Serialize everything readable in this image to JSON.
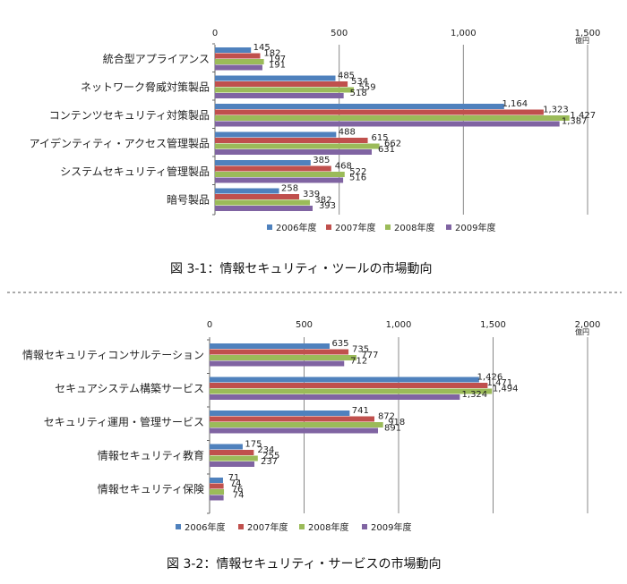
{
  "colors": {
    "s2006": "#4f81bd",
    "s2007": "#c0504d",
    "s2008": "#9bbb59",
    "s2009": "#8064a2",
    "grid": "#888888"
  },
  "chart_data": [
    {
      "type": "bar",
      "orientation": "horizontal",
      "title": "図 3-1：情報セキュリティ・ツールの市場動向",
      "unit": "億円",
      "xlim": [
        0,
        1500
      ],
      "ticks": [
        "0",
        "500",
        "1,000",
        "1,500"
      ],
      "tick_values": [
        0,
        500,
        1000,
        1500
      ],
      "grid": true,
      "legend_position": "bottom",
      "categories": [
        "統合型アプライアンス",
        "ネットワーク脅威対策製品",
        "コンテンツセキュリティ対策製品",
        "アイデンティティ・アクセス管理製品",
        "システムセキュリティ管理製品",
        "暗号製品"
      ],
      "series": [
        {
          "name": "2006年度",
          "values": [
            145,
            485,
            1164,
            488,
            385,
            258
          ],
          "labels": [
            "145",
            "485",
            "1,164",
            "488",
            "385",
            "258"
          ]
        },
        {
          "name": "2007年度",
          "values": [
            182,
            534,
            1323,
            615,
            468,
            339
          ],
          "labels": [
            "182",
            "534",
            "1,323",
            "615",
            "468",
            "339"
          ]
        },
        {
          "name": "2008年度",
          "values": [
            197,
            559,
            1427,
            662,
            522,
            382
          ],
          "labels": [
            "197",
            "559",
            "1,427",
            "662",
            "522",
            "382"
          ]
        },
        {
          "name": "2009年度",
          "values": [
            191,
            518,
            1387,
            631,
            516,
            393
          ],
          "labels": [
            "191",
            "518",
            "1,387",
            "631",
            "516",
            "393"
          ]
        }
      ]
    },
    {
      "type": "bar",
      "orientation": "horizontal",
      "title": "図 3-2：情報セキュリティ・サービスの市場動向",
      "unit": "億円",
      "xlim": [
        0,
        2000
      ],
      "ticks": [
        "0",
        "500",
        "1,000",
        "1,500",
        "2,000"
      ],
      "tick_values": [
        0,
        500,
        1000,
        1500,
        2000
      ],
      "grid": true,
      "legend_position": "bottom",
      "categories": [
        "情報セキュリティコンサルテーション",
        "セキュアシステム構築サービス",
        "セキュリティ運用・管理サービス",
        "情報セキュリティ教育",
        "情報セキュリティ保険"
      ],
      "series": [
        {
          "name": "2006年度",
          "values": [
            635,
            1426,
            741,
            175,
            71
          ],
          "labels": [
            "635",
            "1,426",
            "741",
            "175",
            "71"
          ]
        },
        {
          "name": "2007年度",
          "values": [
            735,
            1471,
            872,
            234,
            74
          ],
          "labels": [
            "735",
            "1,471",
            "872",
            "234",
            "74"
          ]
        },
        {
          "name": "2008年度",
          "values": [
            777,
            1494,
            918,
            255,
            76
          ],
          "labels": [
            "777",
            "1,494",
            "918",
            "255",
            "76"
          ]
        },
        {
          "name": "2009年度",
          "values": [
            712,
            1324,
            891,
            237,
            74
          ],
          "labels": [
            "712",
            "1,324",
            "891",
            "237",
            "74"
          ]
        }
      ]
    }
  ]
}
